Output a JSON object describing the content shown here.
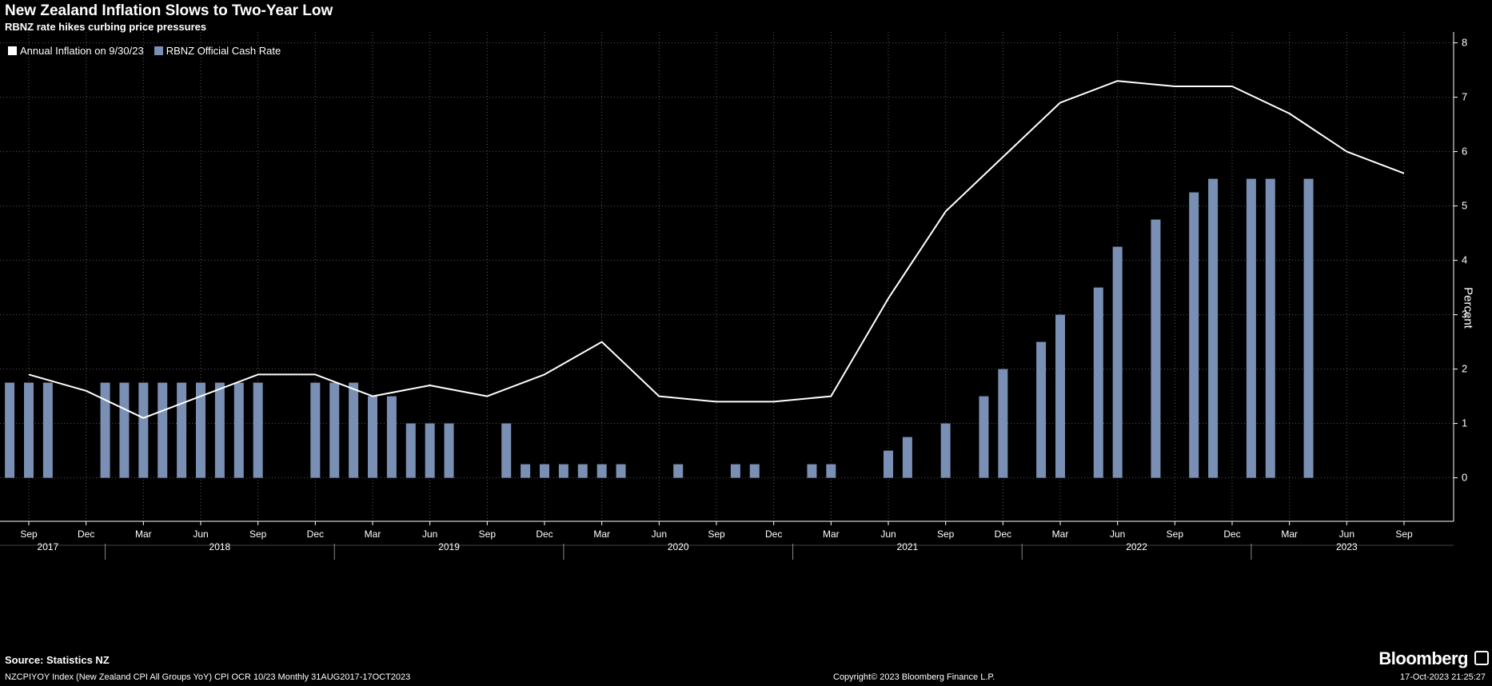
{
  "header": {
    "title": "New Zealand Inflation Slows to Two-Year Low",
    "subtitle": "RBNZ rate hikes curbing price pressures"
  },
  "footer": {
    "source": "Source:  Statistics NZ",
    "query": "NZCPIYOY Index (New Zealand CPI All Groups YoY) CPI OCR 10/23  Monthly 31AUG2017-17OCT2023",
    "copyright": "Copyright© 2023 Bloomberg Finance L.P.",
    "timestamp": "17-Oct-2023 21:25:27",
    "brand": "Bloomberg"
  },
  "colors": {
    "background": "#000000",
    "inflation_line": "#ffffff",
    "cash_rate_bar": "#7a8fb4",
    "grid": "#5a5a5a",
    "text": "#ffffff"
  },
  "chart_data": {
    "type": "bar",
    "ylabel": "Percent",
    "ylim": [
      -0.8,
      8.2
    ],
    "yticks": [
      0,
      1,
      2,
      3,
      4,
      5,
      6,
      7,
      8
    ],
    "grid": true,
    "legend_position": "top-left",
    "month_ticks": [
      {
        "label": "Sep",
        "date": "2017-09"
      },
      {
        "label": "Dec",
        "date": "2017-12"
      },
      {
        "label": "Mar",
        "date": "2018-03"
      },
      {
        "label": "Jun",
        "date": "2018-06"
      },
      {
        "label": "Sep",
        "date": "2018-09"
      },
      {
        "label": "Dec",
        "date": "2018-12"
      },
      {
        "label": "Mar",
        "date": "2019-03"
      },
      {
        "label": "Jun",
        "date": "2019-06"
      },
      {
        "label": "Sep",
        "date": "2019-09"
      },
      {
        "label": "Dec",
        "date": "2019-12"
      },
      {
        "label": "Mar",
        "date": "2020-03"
      },
      {
        "label": "Jun",
        "date": "2020-06"
      },
      {
        "label": "Sep",
        "date": "2020-09"
      },
      {
        "label": "Dec",
        "date": "2020-12"
      },
      {
        "label": "Mar",
        "date": "2021-03"
      },
      {
        "label": "Jun",
        "date": "2021-06"
      },
      {
        "label": "Sep",
        "date": "2021-09"
      },
      {
        "label": "Dec",
        "date": "2021-12"
      },
      {
        "label": "Mar",
        "date": "2022-03"
      },
      {
        "label": "Jun",
        "date": "2022-06"
      },
      {
        "label": "Sep",
        "date": "2022-09"
      },
      {
        "label": "Dec",
        "date": "2022-12"
      },
      {
        "label": "Mar",
        "date": "2023-03"
      },
      {
        "label": "Jun",
        "date": "2023-06"
      },
      {
        "label": "Sep",
        "date": "2023-09"
      }
    ],
    "year_labels": [
      {
        "label": "2017",
        "date": "2017-10"
      },
      {
        "label": "2018",
        "date": "2018-07"
      },
      {
        "label": "2019",
        "date": "2019-07"
      },
      {
        "label": "2020",
        "date": "2020-07"
      },
      {
        "label": "2021",
        "date": "2021-07"
      },
      {
        "label": "2022",
        "date": "2022-07"
      },
      {
        "label": "2023",
        "date": "2023-06"
      }
    ],
    "series": [
      {
        "name": "Annual Inflation on 9/30/23",
        "type": "line",
        "color": "#ffffff",
        "points": [
          {
            "date": "2017-09",
            "value": 1.9
          },
          {
            "date": "2017-12",
            "value": 1.6
          },
          {
            "date": "2018-03",
            "value": 1.1
          },
          {
            "date": "2018-06",
            "value": 1.5
          },
          {
            "date": "2018-09",
            "value": 1.9
          },
          {
            "date": "2018-12",
            "value": 1.9
          },
          {
            "date": "2019-03",
            "value": 1.5
          },
          {
            "date": "2019-06",
            "value": 1.7
          },
          {
            "date": "2019-09",
            "value": 1.5
          },
          {
            "date": "2019-12",
            "value": 1.9
          },
          {
            "date": "2020-03",
            "value": 2.5
          },
          {
            "date": "2020-06",
            "value": 1.5
          },
          {
            "date": "2020-09",
            "value": 1.4
          },
          {
            "date": "2020-12",
            "value": 1.4
          },
          {
            "date": "2021-03",
            "value": 1.5
          },
          {
            "date": "2021-06",
            "value": 3.3
          },
          {
            "date": "2021-09",
            "value": 4.9
          },
          {
            "date": "2021-12",
            "value": 5.9
          },
          {
            "date": "2022-03",
            "value": 6.9
          },
          {
            "date": "2022-06",
            "value": 7.3
          },
          {
            "date": "2022-09",
            "value": 7.2
          },
          {
            "date": "2022-12",
            "value": 7.2
          },
          {
            "date": "2023-03",
            "value": 6.7
          },
          {
            "date": "2023-06",
            "value": 6.0
          },
          {
            "date": "2023-09",
            "value": 5.6
          }
        ]
      },
      {
        "name": "RBNZ Official Cash Rate",
        "type": "bar",
        "color": "#7a8fb4",
        "points": [
          {
            "date": "2017-08",
            "value": 1.75
          },
          {
            "date": "2017-09",
            "value": 1.75
          },
          {
            "date": "2017-10",
            "value": 1.75
          },
          {
            "date": "2017-11",
            "value": 0
          },
          {
            "date": "2017-12",
            "value": 0
          },
          {
            "date": "2018-01",
            "value": 1.75
          },
          {
            "date": "2018-02",
            "value": 1.75
          },
          {
            "date": "2018-03",
            "value": 1.75
          },
          {
            "date": "2018-04",
            "value": 1.75
          },
          {
            "date": "2018-05",
            "value": 1.75
          },
          {
            "date": "2018-06",
            "value": 1.75
          },
          {
            "date": "2018-07",
            "value": 1.75
          },
          {
            "date": "2018-08",
            "value": 1.75
          },
          {
            "date": "2018-09",
            "value": 1.75
          },
          {
            "date": "2018-10",
            "value": 0
          },
          {
            "date": "2018-11",
            "value": 0
          },
          {
            "date": "2018-12",
            "value": 1.75
          },
          {
            "date": "2019-01",
            "value": 1.75
          },
          {
            "date": "2019-02",
            "value": 1.75
          },
          {
            "date": "2019-03",
            "value": 1.5
          },
          {
            "date": "2019-04",
            "value": 1.5
          },
          {
            "date": "2019-05",
            "value": 1.0
          },
          {
            "date": "2019-06",
            "value": 1.0
          },
          {
            "date": "2019-07",
            "value": 1.0
          },
          {
            "date": "2019-08",
            "value": 0
          },
          {
            "date": "2019-09",
            "value": 0
          },
          {
            "date": "2019-10",
            "value": 1.0
          },
          {
            "date": "2019-11",
            "value": 0.25
          },
          {
            "date": "2019-12",
            "value": 0.25
          },
          {
            "date": "2020-01",
            "value": 0.25
          },
          {
            "date": "2020-02",
            "value": 0.25
          },
          {
            "date": "2020-03",
            "value": 0.25
          },
          {
            "date": "2020-04",
            "value": 0.25
          },
          {
            "date": "2020-05",
            "value": 0
          },
          {
            "date": "2020-06",
            "value": 0
          },
          {
            "date": "2020-07",
            "value": 0.25
          },
          {
            "date": "2020-08",
            "value": 0
          },
          {
            "date": "2020-09",
            "value": 0
          },
          {
            "date": "2020-10",
            "value": 0.25
          },
          {
            "date": "2020-11",
            "value": 0.25
          },
          {
            "date": "2020-12",
            "value": 0
          },
          {
            "date": "2021-01",
            "value": 0
          },
          {
            "date": "2021-02",
            "value": 0.25
          },
          {
            "date": "2021-03",
            "value": 0.25
          },
          {
            "date": "2021-04",
            "value": 0
          },
          {
            "date": "2021-05",
            "value": 0
          },
          {
            "date": "2021-06",
            "value": 0.5
          },
          {
            "date": "2021-07",
            "value": 0.75
          },
          {
            "date": "2021-08",
            "value": 0
          },
          {
            "date": "2021-09",
            "value": 1.0
          },
          {
            "date": "2021-10",
            "value": 0
          },
          {
            "date": "2021-11",
            "value": 1.5
          },
          {
            "date": "2021-12",
            "value": 2.0
          },
          {
            "date": "2022-01",
            "value": 0
          },
          {
            "date": "2022-02",
            "value": 2.5
          },
          {
            "date": "2022-03",
            "value": 3.0
          },
          {
            "date": "2022-04",
            "value": 0
          },
          {
            "date": "2022-05",
            "value": 3.5
          },
          {
            "date": "2022-06",
            "value": 4.25
          },
          {
            "date": "2022-07",
            "value": 0
          },
          {
            "date": "2022-08",
            "value": 4.75
          },
          {
            "date": "2022-09",
            "value": 0
          },
          {
            "date": "2022-10",
            "value": 5.25
          },
          {
            "date": "2022-11",
            "value": 5.5
          },
          {
            "date": "2022-12",
            "value": 0
          },
          {
            "date": "2023-01",
            "value": 5.5
          },
          {
            "date": "2023-02",
            "value": 5.5
          },
          {
            "date": "2023-03",
            "value": 0
          },
          {
            "date": "2023-04",
            "value": 5.5
          }
        ]
      }
    ]
  }
}
